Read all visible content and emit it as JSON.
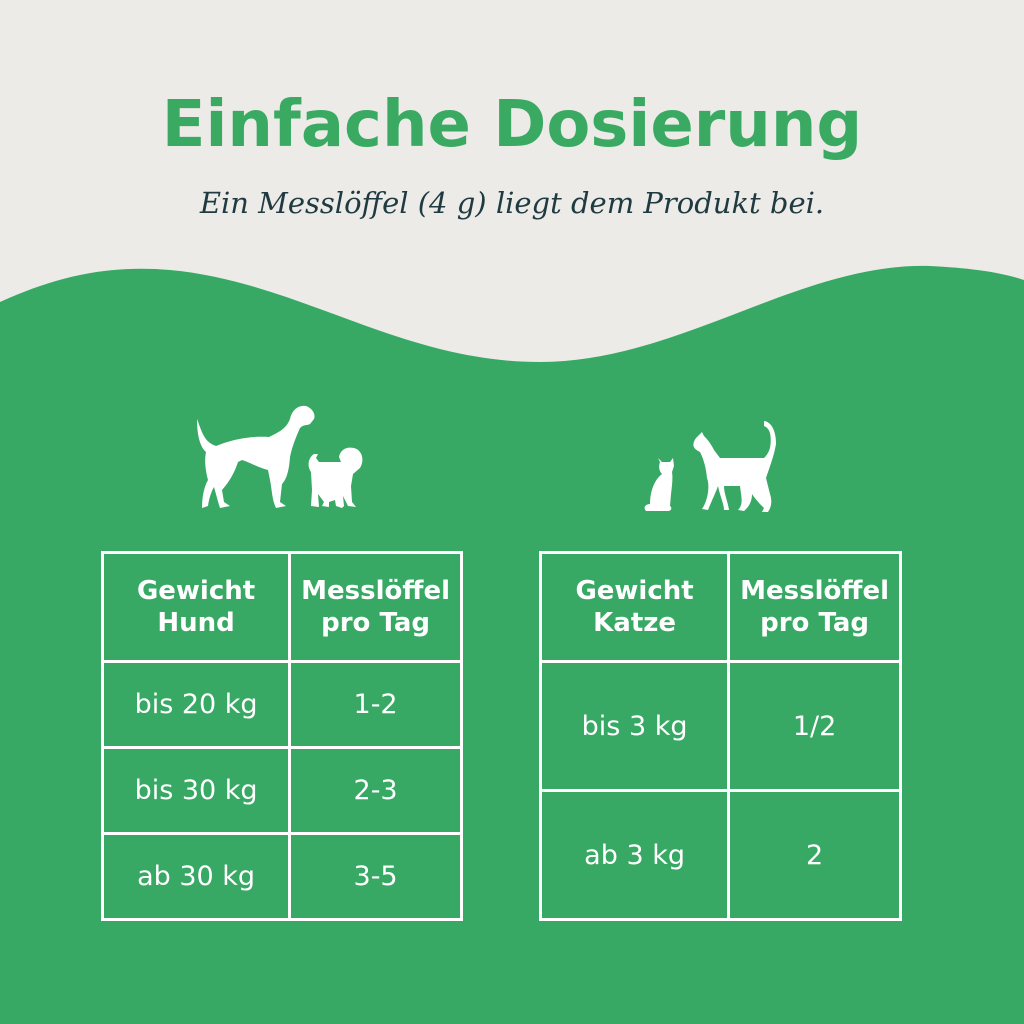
{
  "colors": {
    "background": "#ecebe8",
    "accent_green": "#38a964",
    "title_green": "#3aaa62",
    "subtitle": "#1f3a40",
    "table_text": "#ffffff"
  },
  "title": "Einfache Dosierung",
  "subtitle": "Ein Messlöffel (4 g) liegt dem Produkt bei.",
  "icons": {
    "dogs": "dog-and-puppy-silhouette-icon",
    "cats": "kitten-and-cat-silhouette-icon"
  },
  "dog_table": {
    "headers": [
      "Gewicht Hund",
      "Messlöffel pro Tag"
    ],
    "rows": [
      [
        "bis 20 kg",
        "1-2"
      ],
      [
        "bis 30 kg",
        "2-3"
      ],
      [
        "ab 30 kg",
        "3-5"
      ]
    ]
  },
  "cat_table": {
    "headers": [
      "Gewicht Katze",
      "Messlöffel pro Tag"
    ],
    "rows": [
      [
        "bis 3 kg",
        "1/2"
      ],
      [
        "ab 3 kg",
        "2"
      ]
    ]
  }
}
